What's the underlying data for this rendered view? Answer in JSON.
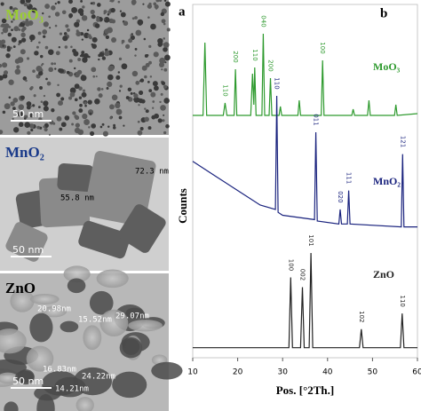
{
  "tem": {
    "panels": [
      {
        "label": "MoO₃",
        "scale_bar": "50 nm",
        "measurements": []
      },
      {
        "label": "MnO₂",
        "scale_bar": "50 nm",
        "measurements": [
          "72.3 nm",
          "55.8 nm"
        ]
      },
      {
        "label": "ZnO",
        "scale_bar": "50 nm",
        "measurements": [
          "20.98nm",
          "15.52nm",
          "29.07nm",
          "16.83nm",
          "24.22nm",
          "14.21nm"
        ]
      }
    ]
  },
  "panel_labels": [
    "a",
    "b"
  ],
  "chart_data": {
    "type": "line",
    "xlabel": "Pos. [°2Th.]",
    "ylabel": "Counts",
    "xlim": [
      10,
      60
    ],
    "xticks": [
      10,
      20,
      30,
      40,
      50,
      60
    ],
    "series": [
      {
        "name": "MoO₃",
        "color": "#2e9a2e",
        "x": [
          10,
          12.3,
          12.7,
          13.1,
          16.8,
          17.2,
          17.6,
          19.2,
          19.5,
          19.8,
          22.9,
          23.3,
          23.6,
          23.8,
          24.1,
          25.4,
          25.7,
          26,
          27,
          27.3,
          27.6,
          29.2,
          29.5,
          29.8,
          33.4,
          33.7,
          34,
          38.6,
          38.9,
          39.2,
          45.4,
          45.7,
          46,
          48.9,
          49.2,
          49.5,
          54.9,
          55.2,
          55.5,
          60
        ],
        "values": [
          8,
          8,
          90,
          8,
          8,
          22,
          8,
          8,
          60,
          8,
          8,
          55,
          20,
          62,
          8,
          8,
          100,
          8,
          8,
          50,
          8,
          8,
          18,
          8,
          8,
          25,
          8,
          8,
          70,
          8,
          8,
          15,
          8,
          8,
          25,
          8,
          8,
          20,
          8,
          10
        ],
        "peaks": [
          {
            "x": 17.2,
            "label": "110"
          },
          {
            "x": 19.5,
            "label": "200"
          },
          {
            "x": 23.8,
            "label": "110"
          },
          {
            "x": 25.7,
            "label": "040"
          },
          {
            "x": 27.3,
            "label": "200"
          },
          {
            "x": 38.9,
            "label": "100"
          }
        ]
      },
      {
        "name": "MnO₂",
        "color": "#1a237e",
        "x": [
          10,
          15,
          20,
          25,
          28.4,
          28.7,
          29,
          30,
          37.1,
          37.4,
          37.7,
          42.5,
          42.8,
          43.1,
          44.4,
          44.7,
          45,
          56.4,
          56.7,
          57,
          60
        ],
        "values": [
          55,
          45,
          35,
          25,
          22,
          100,
          20,
          18,
          15,
          75,
          14,
          12,
          22,
          12,
          12,
          35,
          12,
          10,
          60,
          10,
          10
        ],
        "peaks": [
          {
            "x": 28.7,
            "label": "110"
          },
          {
            "x": 37.4,
            "label": "011"
          },
          {
            "x": 42.8,
            "label": "020"
          },
          {
            "x": 44.7,
            "label": "111"
          },
          {
            "x": 56.7,
            "label": "121"
          }
        ]
      },
      {
        "name": "ZnO",
        "color": "#222222",
        "x": [
          10,
          31.4,
          31.8,
          32.2,
          34,
          34.4,
          34.8,
          35.9,
          36.3,
          36.7,
          47.1,
          47.5,
          47.9,
          56.2,
          56.6,
          57,
          60
        ],
        "values": [
          3,
          3,
          75,
          3,
          3,
          65,
          3,
          3,
          100,
          3,
          3,
          22,
          3,
          3,
          38,
          3,
          3
        ],
        "peaks": [
          {
            "x": 31.8,
            "label": "100"
          },
          {
            "x": 34.4,
            "label": "002"
          },
          {
            "x": 36.3,
            "label": "101"
          },
          {
            "x": 47.5,
            "label": "102"
          },
          {
            "x": 56.6,
            "label": "110"
          }
        ]
      }
    ]
  }
}
